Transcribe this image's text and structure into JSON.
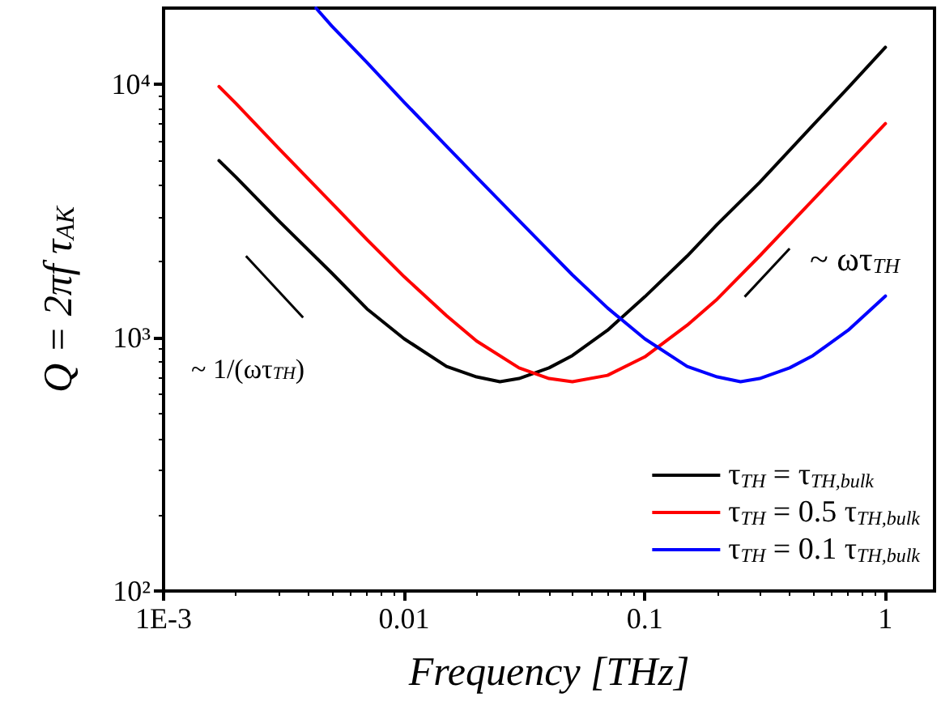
{
  "chart_data": {
    "type": "line",
    "xlabel": "Frequency [THz]",
    "ylabel": "Q = 2πf τ$_{AK}$",
    "log": "xy",
    "grid": false,
    "legend": "bottom right",
    "marker": "none",
    "line_style": "solid",
    "xlim": [
      0.001,
      1.6
    ],
    "xticks": [
      {
        "value": 0.001,
        "label": "1E-3"
      },
      0.01,
      0.1,
      1
    ],
    "ylim": [
      100,
      20000
    ],
    "yticks": [
      {
        "value": 100,
        "label": "10²"
      },
      {
        "value": 1000,
        "label": "10³"
      },
      {
        "value": 10000,
        "label": "10⁴"
      }
    ],
    "annotations": [
      "~ 1/(ωτ$_{TH}$)",
      "~ ωτ$_{TH}$"
    ],
    "series": [
      {
        "name": "τ$_{TH}$ = τ$_{TH,bulk}$",
        "color": "#000000",
        "x": [
          0.0017,
          0.002,
          0.003,
          0.005,
          0.007,
          0.01,
          0.015,
          0.02,
          0.025,
          0.03,
          0.04,
          0.05,
          0.07,
          0.1,
          0.15,
          0.2,
          0.3,
          0.5,
          0.7,
          1
        ],
        "values": [
          5000,
          4300,
          2900,
          1800,
          1300,
          990,
          770,
          700,
          670,
          690,
          760,
          850,
          1070,
          1450,
          2100,
          2800,
          4100,
          6900,
          9700,
          14000
        ]
      },
      {
        "name": "τ$_{TH}$ = 0.5 τ$_{TH,bulk}$",
        "color": "#ff0000",
        "x": [
          0.0017,
          0.002,
          0.003,
          0.005,
          0.007,
          0.01,
          0.015,
          0.02,
          0.03,
          0.04,
          0.05,
          0.07,
          0.1,
          0.15,
          0.2,
          0.3,
          0.5,
          0.7,
          1
        ],
        "values": [
          9800,
          8400,
          5600,
          3400,
          2440,
          1740,
          1220,
          970,
          760,
          690,
          670,
          710,
          840,
          1120,
          1420,
          2100,
          3500,
          4900,
          7000
        ]
      },
      {
        "name": "τ$_{TH}$ = 0.1 τ$_{TH,bulk}$",
        "color": "#0000ff",
        "x": [
          0.0043,
          0.005,
          0.007,
          0.01,
          0.015,
          0.02,
          0.03,
          0.05,
          0.07,
          0.1,
          0.15,
          0.2,
          0.25,
          0.3,
          0.4,
          0.5,
          0.7,
          1
        ],
        "values": [
          20000,
          17000,
          12200,
          8500,
          5700,
          4300,
          2900,
          1770,
          1310,
          990,
          770,
          700,
          670,
          690,
          760,
          850,
          1070,
          1460
        ]
      }
    ]
  }
}
